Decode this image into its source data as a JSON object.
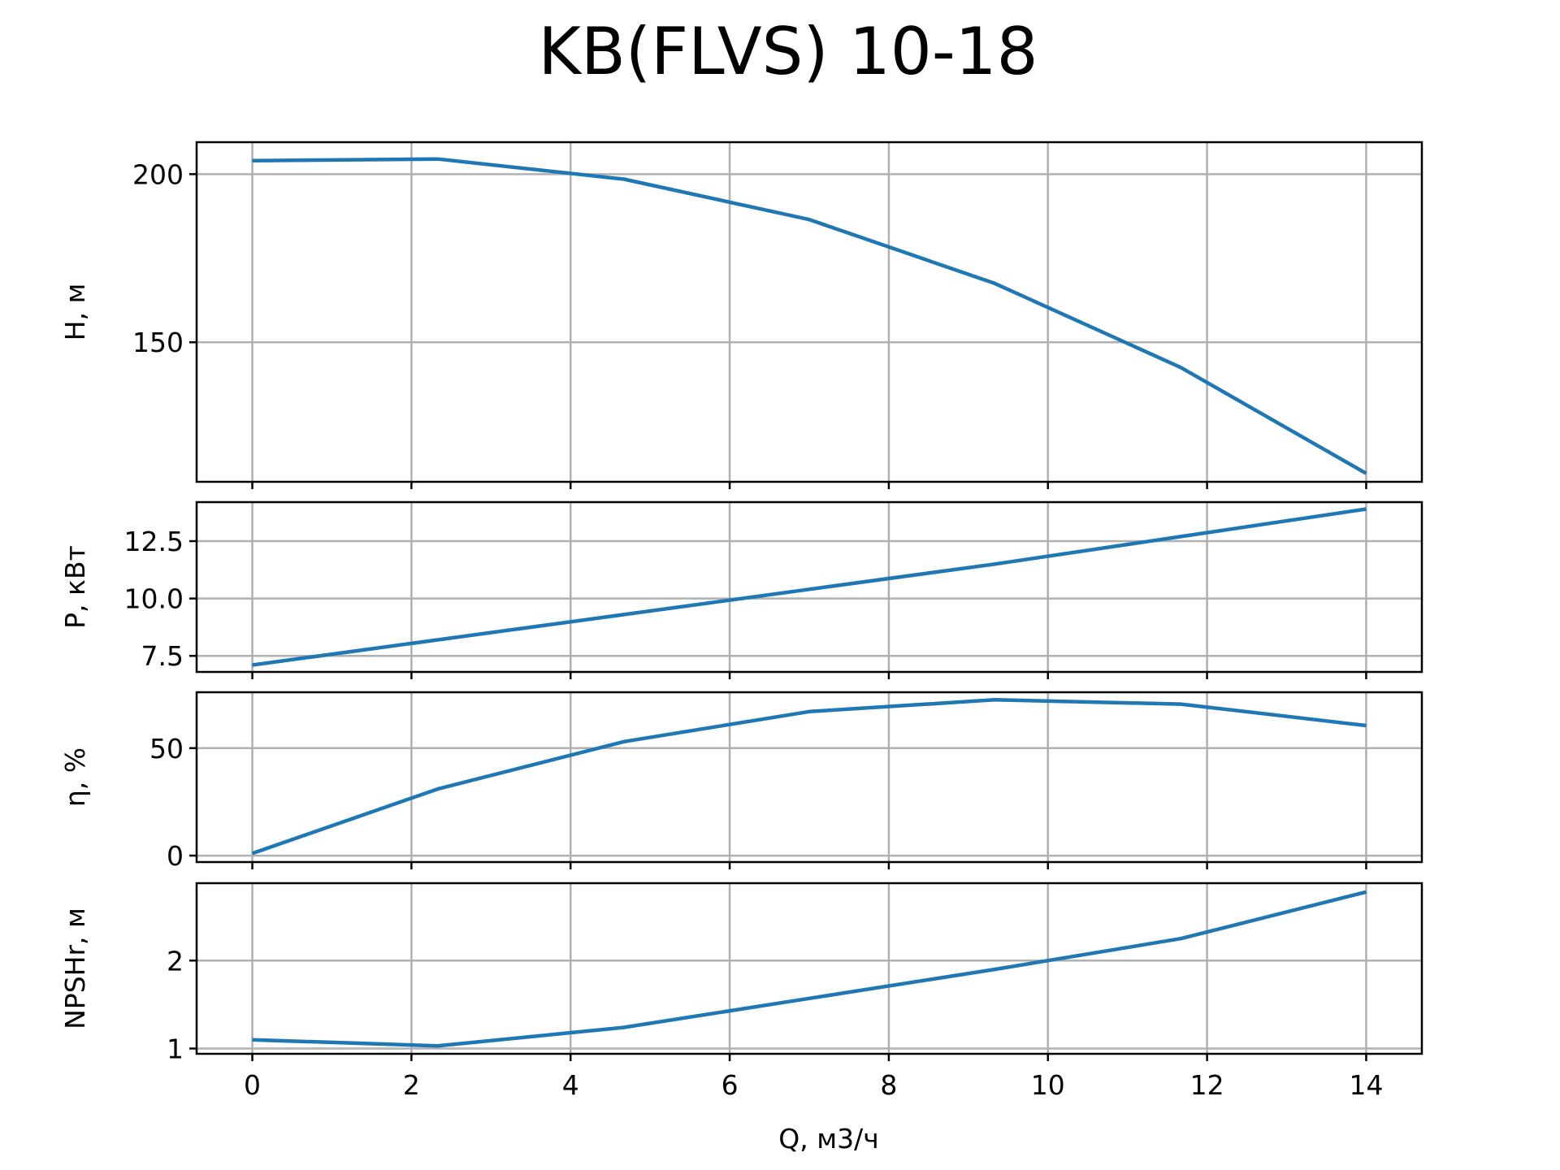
{
  "chart_data": {
    "type": "line",
    "title": "KB(FLVS) 10-18",
    "xlabel": "Q, м3/ч",
    "x": [
      0,
      2.33,
      4.67,
      7.0,
      9.33,
      11.67,
      14.0
    ],
    "xlim": [
      -0.7,
      14.7
    ],
    "xticks": [
      0,
      2,
      4,
      6,
      8,
      10,
      12,
      14
    ],
    "grid": true,
    "line_color": "#1f77b4",
    "panels": [
      {
        "id": "head",
        "ylabel": "H, м",
        "ylim": [
          108.5,
          209.5
        ],
        "yticks": [
          150,
          200
        ],
        "ytick_labels": [
          "150",
          "200"
        ],
        "values": [
          204,
          204.5,
          198.5,
          186.5,
          167.5,
          142.5,
          111
        ]
      },
      {
        "id": "power",
        "ylabel": "P, кВт",
        "ylim": [
          6.8,
          14.2
        ],
        "yticks": [
          7.5,
          10.0,
          12.5
        ],
        "ytick_labels": [
          "7.5",
          "10.0",
          "12.5"
        ],
        "values": [
          7.1,
          8.2,
          9.3,
          10.4,
          11.5,
          12.7,
          13.9
        ]
      },
      {
        "id": "efficiency",
        "ylabel": "η, %",
        "ylim": [
          -3,
          76
        ],
        "yticks": [
          0,
          50
        ],
        "ytick_labels": [
          "0",
          "50"
        ],
        "values": [
          1,
          31,
          53,
          67,
          72.5,
          70.5,
          60.5
        ]
      },
      {
        "id": "npsh",
        "ylabel": "NPSHr, м",
        "ylim": [
          0.94,
          2.88
        ],
        "yticks": [
          1,
          2
        ],
        "ytick_labels": [
          "1",
          "2"
        ],
        "values": [
          1.1,
          1.03,
          1.24,
          1.57,
          1.9,
          2.25,
          2.78
        ]
      }
    ]
  }
}
